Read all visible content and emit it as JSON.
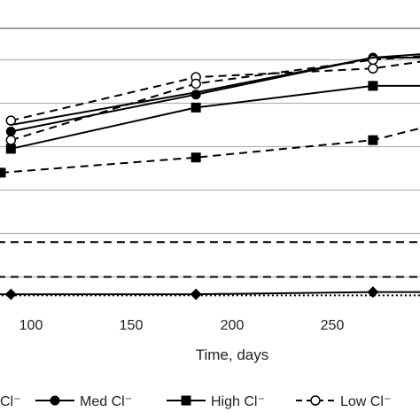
{
  "chart_data": {
    "type": "line",
    "xlabel": "Time, days",
    "ylabel": "",
    "xlim": [
      80,
      300
    ],
    "ylim": [
      0,
      13
    ],
    "x_ticks": [
      "100",
      "150",
      "200",
      "250"
    ],
    "x_tick_values": [
      100,
      150,
      200,
      250
    ],
    "grid": true,
    "gridlines_y": [
      1,
      3,
      5,
      7,
      9,
      11
    ],
    "legend_position": "bottom",
    "series": [
      {
        "name": "Cl⁻",
        "style": "solid",
        "marker": "diamond",
        "visible_label": "Cl⁻",
        "x": [
          70,
          90,
          182,
          270,
          300
        ],
        "y": [
          0.2,
          0.2,
          0.2,
          0.3,
          0.3
        ]
      },
      {
        "name": "Med Cl⁻",
        "style": "solid",
        "marker": "circle",
        "x": [
          90,
          182,
          270,
          300
        ],
        "y": [
          7.7,
          9.4,
          11.1,
          11.1
        ]
      },
      {
        "name": "High Cl⁻",
        "style": "solid",
        "marker": "square",
        "x": [
          90,
          182,
          270,
          300
        ],
        "y": [
          6.9,
          8.8,
          9.8,
          9.8
        ]
      },
      {
        "name": "Low Cl⁻",
        "style": "dashed",
        "marker": "circle-open",
        "x": [
          90,
          182,
          270,
          300
        ],
        "y": [
          8.2,
          10.2,
          10.6,
          11.0
        ]
      },
      {
        "name": "",
        "style": "dashed",
        "marker": "circle-open",
        "x": [
          90,
          182,
          270,
          300
        ],
        "y": [
          7.3,
          9.9,
          11.0,
          11.2
        ]
      },
      {
        "name": "",
        "style": "solid",
        "marker": "none",
        "x": [
          90,
          182,
          270,
          300
        ],
        "y": [
          8.0,
          9.5,
          11.1,
          11.3
        ]
      },
      {
        "name": "",
        "style": "dashed",
        "marker": "square",
        "x": [
          85,
          182,
          270,
          300
        ],
        "y": [
          5.8,
          6.5,
          7.3,
          8.0
        ]
      },
      {
        "name": "",
        "style": "dashed",
        "marker": "none",
        "x": [
          70,
          300
        ],
        "y": [
          2.6,
          2.6
        ]
      },
      {
        "name": "",
        "style": "dashed",
        "marker": "none",
        "x": [
          70,
          300
        ],
        "y": [
          1.0,
          1.0
        ]
      },
      {
        "name": "",
        "style": "dotted",
        "marker": "none",
        "x": [
          70,
          300
        ],
        "y": [
          0.15,
          0.15
        ]
      }
    ],
    "legend": [
      {
        "label": "Cl⁻",
        "style": "solid",
        "marker": "none"
      },
      {
        "label": "Med Cl⁻",
        "style": "solid",
        "marker": "circle"
      },
      {
        "label": "High Cl⁻",
        "style": "solid",
        "marker": "square"
      },
      {
        "label": "Low Cl⁻",
        "style": "dashed",
        "marker": "circle-open"
      }
    ]
  }
}
